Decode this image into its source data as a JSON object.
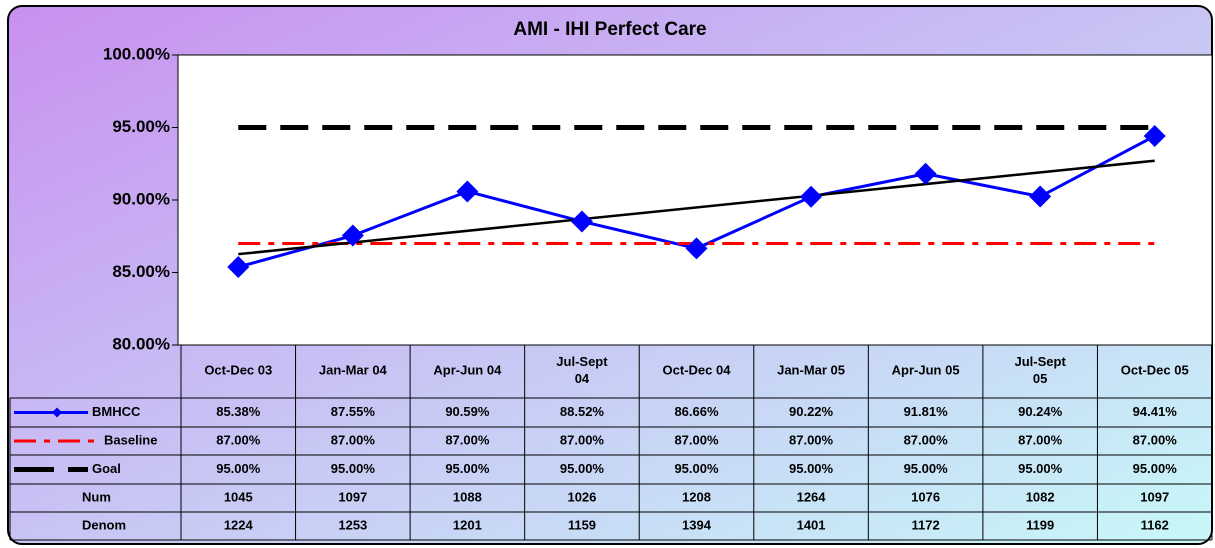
{
  "chart_data": {
    "type": "line",
    "title": "AMI - IHI Perfect Care",
    "categories": [
      "Oct-Dec 03",
      "Jan-Mar 04",
      "Apr-Jun 04",
      "Jul-Sept 04",
      "Oct-Dec 04",
      "Jan-Mar 05",
      "Apr-Jun 05",
      "Jul-Sept 05",
      "Oct-Dec 05"
    ],
    "series": [
      {
        "name": "BMHCC",
        "color": "#0000ff",
        "values": [
          85.38,
          87.55,
          90.59,
          88.52,
          86.66,
          90.22,
          91.81,
          90.24,
          94.41
        ],
        "value_labels": [
          "85.38%",
          "87.55%",
          "90.59%",
          "88.52%",
          "86.66%",
          "90.22%",
          "91.81%",
          "90.24%",
          "94.41%"
        ]
      },
      {
        "name": "Baseline",
        "color": "#ff0000",
        "values": [
          87,
          87,
          87,
          87,
          87,
          87,
          87,
          87,
          87
        ],
        "value_labels": [
          "87.00%",
          "87.00%",
          "87.00%",
          "87.00%",
          "87.00%",
          "87.00%",
          "87.00%",
          "87.00%",
          "87.00%"
        ]
      },
      {
        "name": "Goal",
        "color": "#000000",
        "values": [
          95,
          95,
          95,
          95,
          95,
          95,
          95,
          95,
          95
        ],
        "value_labels": [
          "95.00%",
          "95.00%",
          "95.00%",
          "95.00%",
          "95.00%",
          "95.00%",
          "95.00%",
          "95.00%",
          "95.00%"
        ]
      }
    ],
    "table_rows": [
      {
        "name": "Num",
        "values": [
          1045,
          1097,
          1088,
          1026,
          1208,
          1264,
          1076,
          1082,
          1097
        ]
      },
      {
        "name": "Denom",
        "values": [
          1224,
          1253,
          1201,
          1159,
          1394,
          1401,
          1172,
          1199,
          1162
        ]
      }
    ],
    "ylim": [
      80,
      100
    ],
    "yticks": [
      {
        "value": 80,
        "label": "80.00%"
      },
      {
        "value": 85,
        "label": "85.00%"
      },
      {
        "value": 90,
        "label": "90.00%"
      },
      {
        "value": 95,
        "label": "95.00%"
      },
      {
        "value": 100,
        "label": "100.00%"
      }
    ],
    "trendline": true
  }
}
